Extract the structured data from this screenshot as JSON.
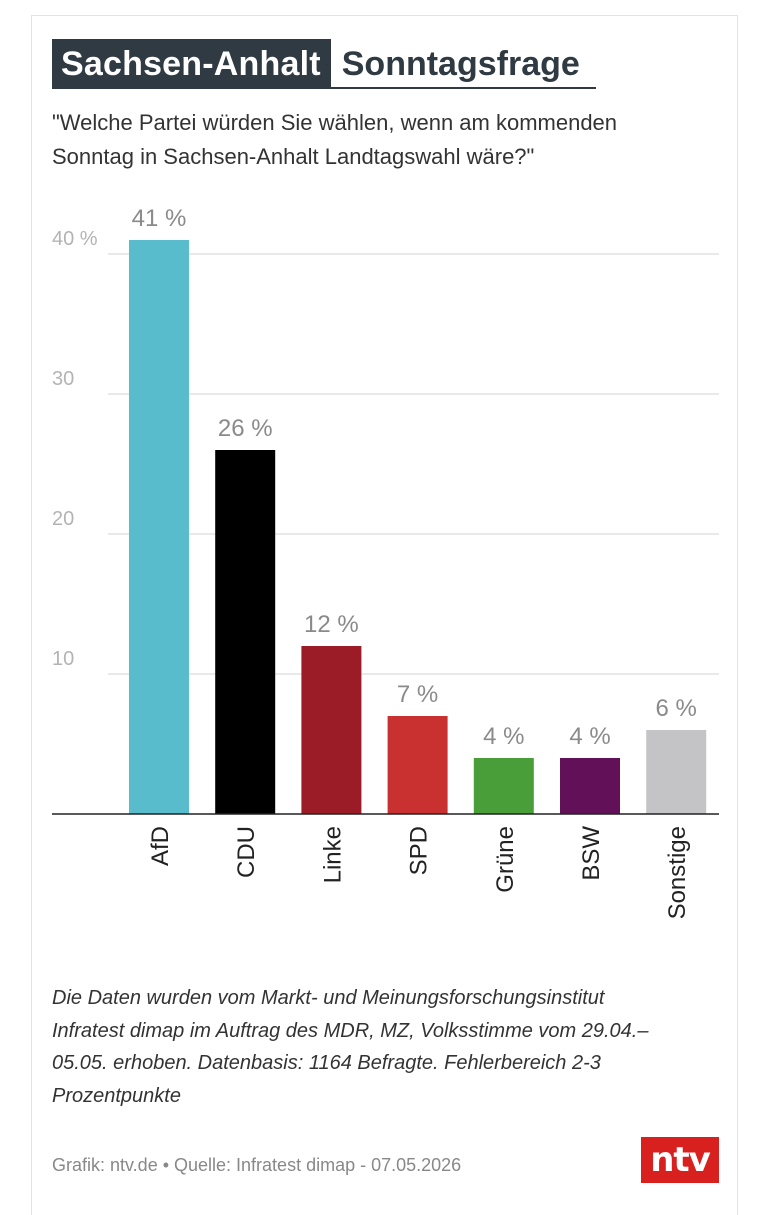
{
  "header": {
    "region": "Sachsen-Anhalt",
    "topic": "Sonntagsfrage",
    "question": "\"Welche Partei würden Sie wählen, wenn am kommenden Sonntag in Sachsen-Anhalt Landtagswahl wäre?\""
  },
  "chart_data": {
    "type": "bar",
    "categories": [
      "AfD",
      "CDU",
      "Linke",
      "SPD",
      "Grüne",
      "BSW",
      "Sonstige"
    ],
    "values": [
      41,
      26,
      12,
      7,
      4,
      4,
      6
    ],
    "value_labels": [
      "41 %",
      "26 %",
      "12 %",
      "7 %",
      "4 %",
      "4 %",
      "6 %"
    ],
    "colors": [
      "#58bccc",
      "#000000",
      "#9b1c26",
      "#c8312f",
      "#4a9e3a",
      "#621158",
      "#c4c4c6"
    ],
    "yticks": [
      {
        "value": 10,
        "label": "10"
      },
      {
        "value": 20,
        "label": "20"
      },
      {
        "value": 30,
        "label": "30"
      },
      {
        "value": 40,
        "label": "40 %"
      }
    ],
    "ylim": [
      0,
      41
    ],
    "grid": true,
    "xlabel_orientation": "vertical"
  },
  "footnote": "Die Daten wurden vom Markt- und Meinungsforschungsinstitut Infratest dimap im Auftrag des MDR, MZ, Volksstimme vom 29.04.–05.05. erhoben. Datenbasis: 1164 Befragte. Fehlerbereich 2-3 Prozentpunkte",
  "source": "Grafik: ntv.de • Quelle: Infratest dimap - 07.05.2026",
  "logo": "ntv"
}
